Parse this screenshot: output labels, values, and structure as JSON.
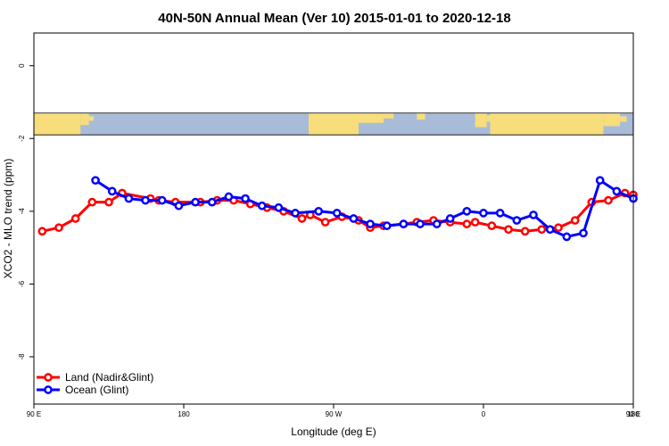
{
  "chart_data": {
    "type": "line",
    "title": "40N-50N Annual Mean (Ver 10)   2015-01-01 to 2020-12-18",
    "xlabel": "Longitude (deg E)",
    "ylabel": "XCO2 - MLO trend (ppm)",
    "xlim": [
      90,
      450
    ],
    "ylim": [
      -9.3,
      0.9
    ],
    "x_ticks": [
      90,
      180,
      270,
      360,
      450,
      540
    ],
    "x_tick_labels": [
      "90 E",
      "180",
      "90 W",
      "0",
      "90 E",
      "180"
    ],
    "y_ticks": [
      0,
      -2,
      -4,
      -6,
      -8
    ],
    "y_tick_labels": [
      "0",
      "-2",
      "-4",
      "-6",
      "-8"
    ],
    "map_strip": {
      "y_top": -1.3,
      "y_bottom": -1.9,
      "land_color": "#f7dd7c",
      "ocean_color": "#a8bcd8"
    },
    "legend_position": "bottom-left",
    "series": [
      {
        "name": "Land (Nadir&Glint)",
        "color": "#ff0000",
        "x": [
          95,
          105,
          115,
          125,
          135,
          143,
          160,
          165,
          175,
          190,
          200,
          210,
          220,
          230,
          240,
          251,
          256,
          265,
          275,
          285,
          292,
          300,
          312,
          320,
          330,
          340,
          350,
          355,
          365,
          375,
          385,
          395,
          405,
          415,
          425,
          435,
          445,
          450
        ],
        "y": [
          -4.55,
          -4.45,
          -4.2,
          -3.75,
          -3.75,
          -3.5,
          -3.65,
          -3.7,
          -3.75,
          -3.75,
          -3.7,
          -3.7,
          -3.8,
          -3.9,
          -4.0,
          -4.2,
          -4.1,
          -4.3,
          -4.15,
          -4.25,
          -4.45,
          -4.4,
          -4.35,
          -4.3,
          -4.25,
          -4.3,
          -4.35,
          -4.3,
          -4.4,
          -4.5,
          -4.55,
          -4.5,
          -4.45,
          -4.25,
          -3.75,
          -3.7,
          -3.5,
          -3.55
        ]
      },
      {
        "name": "Ocean (Glint)",
        "color": "#0000ff",
        "x": [
          127,
          137,
          147,
          157,
          167,
          177,
          187,
          197,
          207,
          217,
          227,
          237,
          247,
          261,
          272,
          282,
          292,
          302,
          312,
          322,
          332,
          340,
          350,
          360,
          370,
          380,
          390,
          400,
          410,
          420,
          430,
          440,
          450
        ],
        "y": [
          -3.15,
          -3.45,
          -3.65,
          -3.7,
          -3.7,
          -3.85,
          -3.75,
          -3.75,
          -3.6,
          -3.65,
          -3.85,
          -3.9,
          -4.05,
          -4.0,
          -4.05,
          -4.2,
          -4.35,
          -4.4,
          -4.35,
          -4.35,
          -4.35,
          -4.2,
          -4.0,
          -4.05,
          -4.05,
          -4.25,
          -4.1,
          -4.5,
          -4.7,
          -4.6,
          -3.15,
          -3.45,
          -3.65
        ]
      }
    ]
  }
}
